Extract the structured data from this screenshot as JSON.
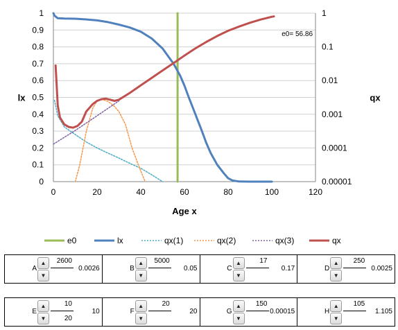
{
  "chart_data": {
    "type": "line",
    "xlabel": "Age x",
    "ylabel_left": "lx",
    "ylabel_right": "qx",
    "xlim": [
      0,
      120
    ],
    "xticks": [
      0,
      20,
      40,
      60,
      80,
      100,
      120
    ],
    "ylim_left": [
      0,
      1
    ],
    "yticks_left": [
      "0",
      "0.1",
      "0.2",
      "0.3",
      "0.4",
      "0.5",
      "0.6",
      "0.7",
      "0.8",
      "0.9",
      "1"
    ],
    "ylim_right": [
      1e-05,
      1
    ],
    "right_scale": "log",
    "yticks_right": [
      "0.00001",
      "0.0001",
      "0.001",
      "0.01",
      "0.1",
      "1"
    ],
    "grid": true,
    "legend_position": "bottom",
    "annotation": "e0= 56.86",
    "e0": 56.86,
    "series": [
      {
        "name": "e0",
        "axis": "left",
        "color": "#9bbb59",
        "style": "solid",
        "width": 3,
        "x": [
          56.86,
          56.86
        ],
        "y": [
          0,
          1
        ]
      },
      {
        "name": "lx",
        "axis": "left",
        "color": "#4f81bd",
        "style": "solid",
        "width": 3,
        "x": [
          0,
          0.5,
          2,
          5,
          10,
          15,
          20,
          25,
          30,
          35,
          40,
          45,
          50,
          55,
          58,
          60,
          62,
          65,
          68,
          70,
          72,
          75,
          78,
          80,
          82,
          85,
          90,
          95,
          100
        ],
        "y": [
          1,
          0.985,
          0.97,
          0.968,
          0.967,
          0.963,
          0.957,
          0.947,
          0.932,
          0.915,
          0.89,
          0.85,
          0.79,
          0.7,
          0.63,
          0.57,
          0.5,
          0.4,
          0.3,
          0.23,
          0.17,
          0.1,
          0.05,
          0.02,
          0.007,
          0.001,
          0,
          0,
          0
        ]
      },
      {
        "name": "qx(1)",
        "axis": "right",
        "color": "#4bacc6",
        "style": "dotted",
        "width": 1.5,
        "x": [
          0.5,
          2,
          5,
          10,
          15,
          20,
          25,
          30,
          35,
          40,
          45,
          50
        ],
        "y": [
          0.0026,
          0.0009,
          0.00042,
          0.00025,
          0.00015,
          0.0001,
          7e-05,
          5e-05,
          3.5e-05,
          2.5e-05,
          1.6e-05,
          1e-05
        ]
      },
      {
        "name": "qx(2)",
        "axis": "right",
        "color": "#f79646",
        "style": "dotted",
        "width": 1.5,
        "x": [
          10,
          12,
          15,
          18,
          20,
          22,
          25,
          28,
          30,
          33,
          36,
          39,
          42
        ],
        "y": [
          1e-05,
          3e-05,
          0.0003,
          0.0015,
          0.0025,
          0.0028,
          0.0024,
          0.0017,
          0.0012,
          0.0005,
          0.0001,
          3e-05,
          1e-05
        ]
      },
      {
        "name": "qx(3)",
        "axis": "right",
        "color": "#8064a2",
        "style": "dotted",
        "width": 1.5,
        "x": [
          0,
          10,
          20,
          30
        ],
        "y": [
          0.00013,
          0.00033,
          0.0009,
          0.0025
        ]
      },
      {
        "name": "qx",
        "axis": "right",
        "color": "#c0504d",
        "style": "solid",
        "width": 3,
        "x": [
          1,
          2,
          3,
          5,
          7,
          9,
          11,
          13,
          15,
          18,
          20,
          22,
          24,
          26,
          28,
          30,
          35,
          40,
          45,
          50,
          55,
          60,
          65,
          70,
          75,
          80,
          85,
          90,
          95,
          100,
          101
        ],
        "y": [
          0.028,
          0.0018,
          0.0008,
          0.0005,
          0.00042,
          0.0004,
          0.00045,
          0.0006,
          0.0012,
          0.002,
          0.0025,
          0.0028,
          0.0029,
          0.0027,
          0.0025,
          0.0027,
          0.0043,
          0.0072,
          0.012,
          0.02,
          0.033,
          0.055,
          0.09,
          0.14,
          0.21,
          0.3,
          0.4,
          0.52,
          0.65,
          0.78,
          0.8
        ]
      }
    ]
  },
  "params": {
    "row1": [
      {
        "letter": "A",
        "numerator": "2600",
        "denominator": "",
        "result": "0.0026"
      },
      {
        "letter": "B",
        "numerator": "5000",
        "denominator": "",
        "result": "0.05"
      },
      {
        "letter": "C",
        "numerator": "17",
        "denominator": "",
        "result": "0.17"
      },
      {
        "letter": "D",
        "numerator": "250",
        "denominator": "",
        "result": "0.0025"
      }
    ],
    "row2": [
      {
        "letter": "E",
        "numerator": "10",
        "denominator": "20",
        "result": "10"
      },
      {
        "letter": "F",
        "numerator": "20",
        "denominator": "",
        "result": "20"
      },
      {
        "letter": "G",
        "numerator": "150",
        "denominator": "",
        "result": "0.00015"
      },
      {
        "letter": "H",
        "numerator": "105",
        "denominator": "",
        "result": "1.105"
      }
    ]
  }
}
